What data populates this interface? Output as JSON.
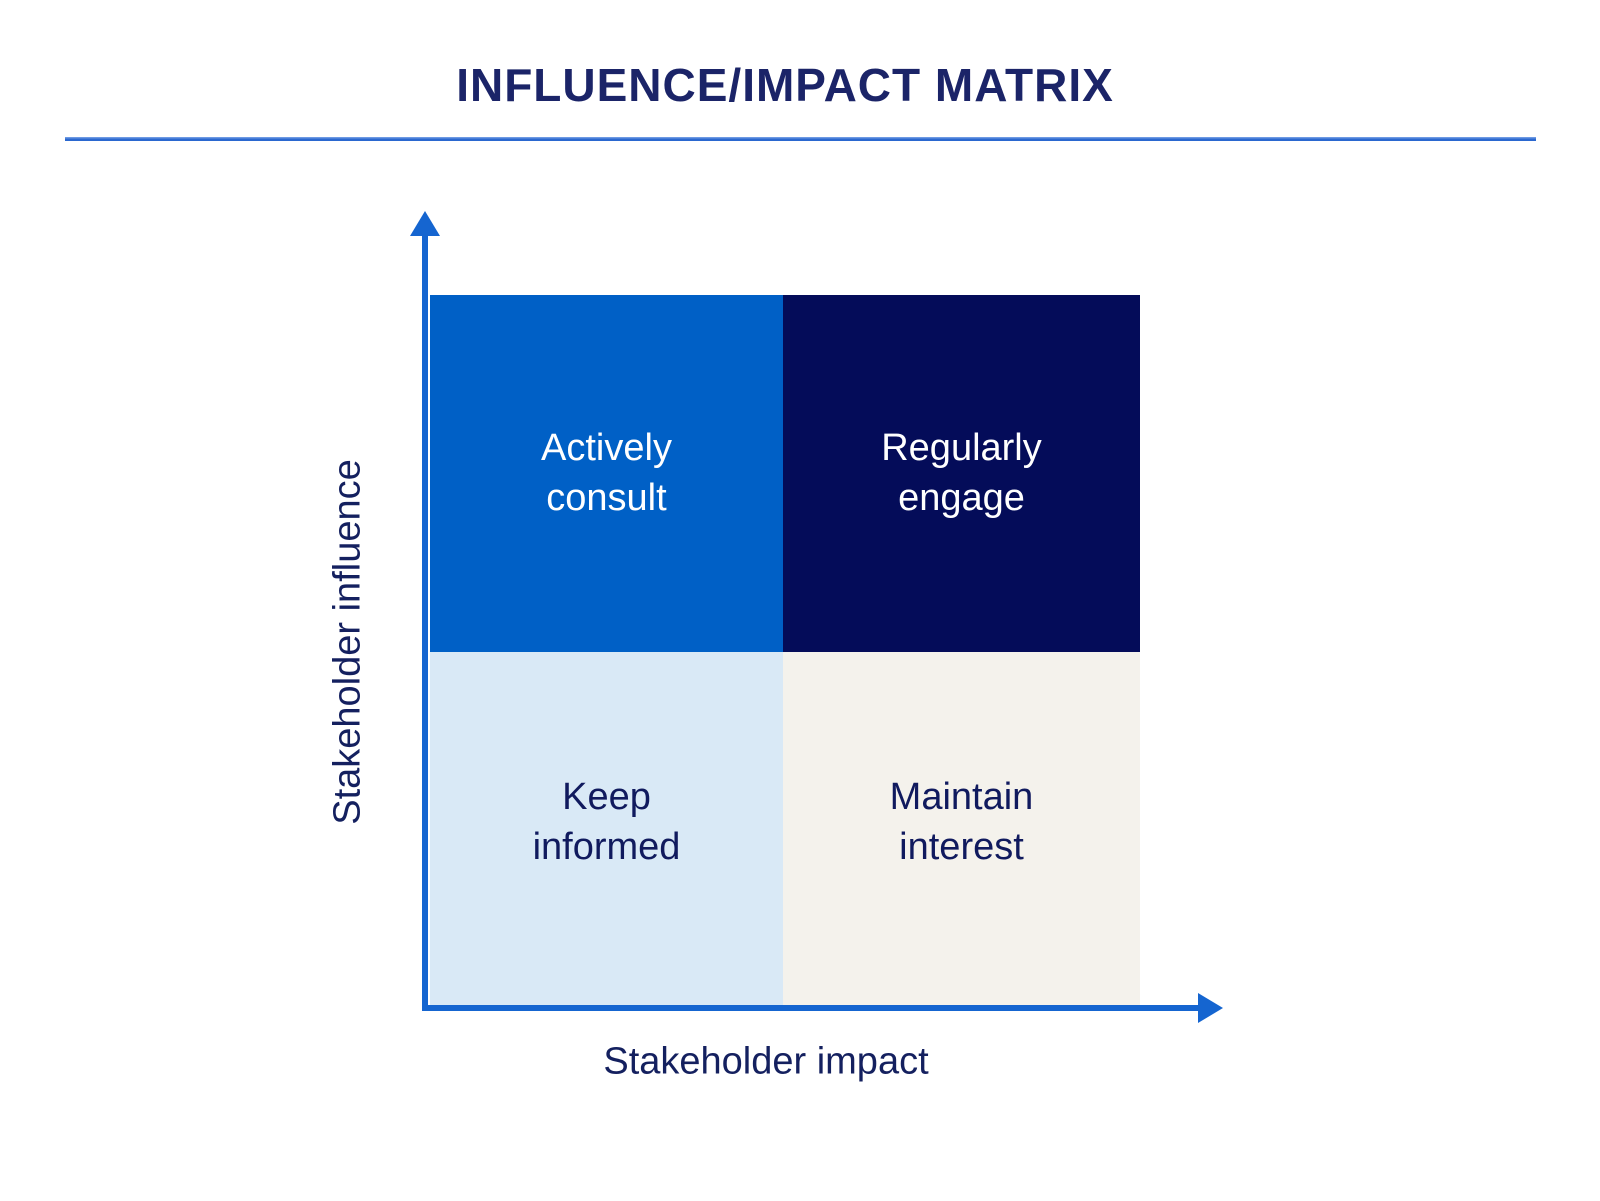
{
  "title": "INFLUENCE/IMPACT MATRIX",
  "axes": {
    "y_label": "Stakeholder influence",
    "x_label": "Stakeholder impact",
    "axis_color": "#1565d0"
  },
  "divider_color": "#2a67cf",
  "title_color": "#1b2468",
  "matrix": {
    "quadrants": {
      "top_left": {
        "line1": "Actively",
        "line2": "consult",
        "bg": "#0060c6",
        "text_color": "#ffffff"
      },
      "top_right": {
        "line1": "Regularly",
        "line2": "engage",
        "bg": "#040c59",
        "text_color": "#ffffff"
      },
      "bottom_left": {
        "line1": "Keep",
        "line2": "informed",
        "bg": "#d9e9f6",
        "text_color": "#101a5e"
      },
      "bottom_right": {
        "line1": "Maintain",
        "line2": "interest",
        "bg": "#f4f2ec",
        "text_color": "#101a5e"
      }
    }
  }
}
